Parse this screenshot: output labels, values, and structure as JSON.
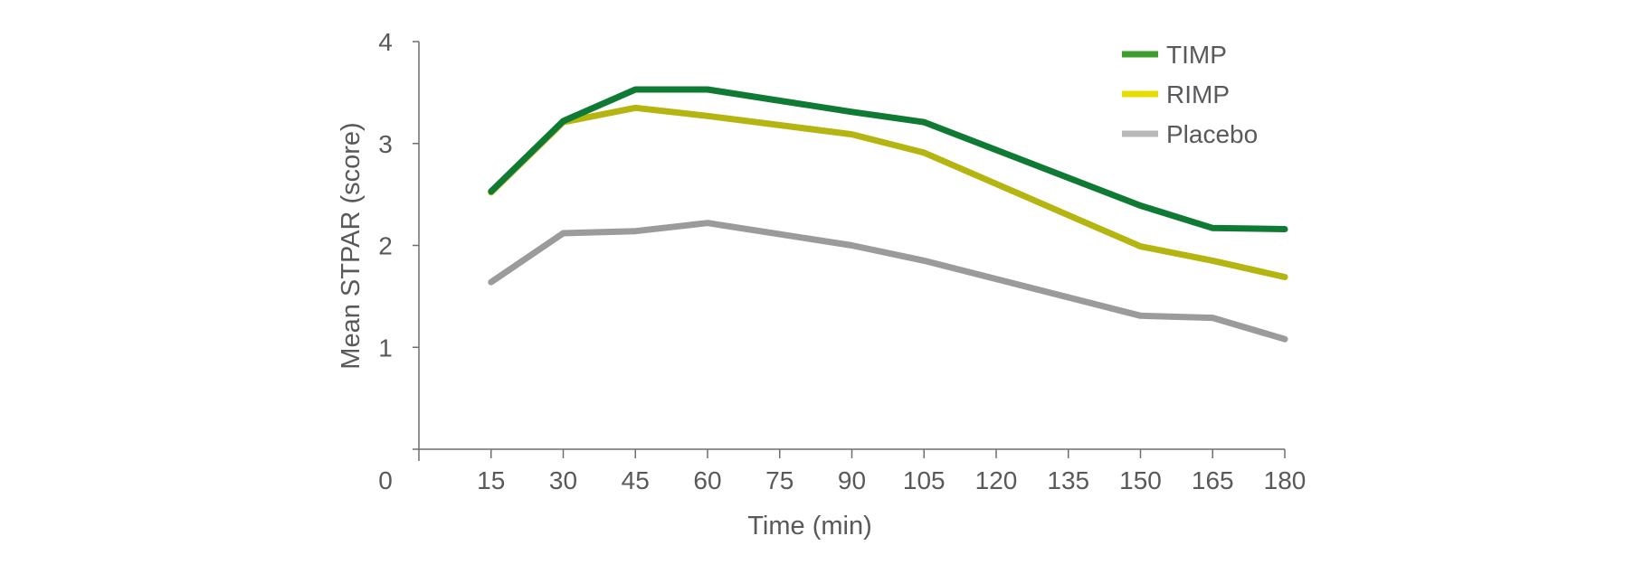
{
  "chart_data": {
    "type": "line",
    "title": "",
    "xlabel": "Time (min)",
    "ylabel": "Mean STPAR (score)",
    "x": [
      15,
      30,
      45,
      60,
      90,
      105,
      150,
      165,
      180
    ],
    "x_ticks": [
      "15",
      "30",
      "45",
      "60",
      "75",
      "90",
      "105",
      "120",
      "135",
      "150",
      "165",
      "180"
    ],
    "y_ticks": [
      "1",
      "2",
      "3",
      "4"
    ],
    "origin_label": "0",
    "xlim": [
      0,
      180
    ],
    "ylim": [
      0,
      4
    ],
    "grid": false,
    "legend_position": "top-right",
    "series": [
      {
        "name": "TIMP",
        "color": "#0f7a33",
        "legend_color": "#3d9e2f",
        "values": [
          2.53,
          3.22,
          3.53,
          3.53,
          3.31,
          3.21,
          2.39,
          2.17,
          2.16
        ]
      },
      {
        "name": "RIMP",
        "color": "#b5b511",
        "legend_color": "#e5de00",
        "values": [
          2.52,
          3.21,
          3.35,
          3.27,
          3.09,
          2.91,
          1.99,
          1.85,
          1.69
        ]
      },
      {
        "name": "Placebo",
        "color": "#9b9b9b",
        "legend_color": "#b9b9b9",
        "values": [
          1.64,
          2.12,
          2.14,
          2.22,
          2.0,
          1.85,
          1.31,
          1.29,
          1.08
        ]
      }
    ]
  }
}
